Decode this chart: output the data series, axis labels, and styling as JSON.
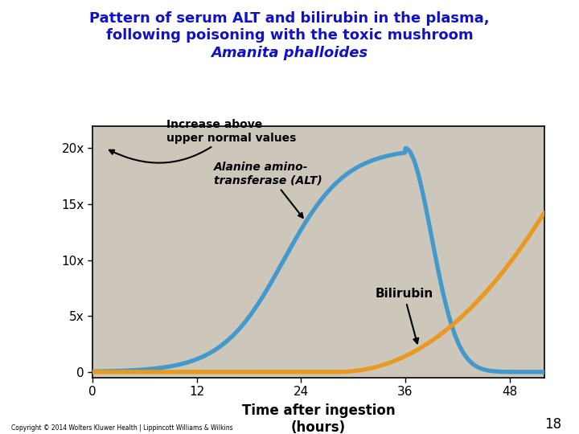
{
  "title_line1": "Pattern of serum ALT and bilirubin in the plasma,",
  "title_line2": "following poisoning with the toxic mushroom",
  "title_line3": "Amanita phalloides",
  "title_color": "#1111cc",
  "plot_bg_color": "#cdc7bb",
  "xlabel_line1": "Time after ingestion",
  "xlabel_line2": "(hours)",
  "yticks": [
    0,
    5,
    10,
    15,
    20
  ],
  "ytick_labels": [
    "0",
    "5x",
    "10x",
    "15x",
    "20x"
  ],
  "xticks": [
    0,
    12,
    24,
    36,
    48
  ],
  "xlim": [
    0,
    52
  ],
  "ylim": [
    -0.5,
    22
  ],
  "alt_color": "#4499cc",
  "bilirubin_color": "#e89a20",
  "copyright_text": "Copyright © 2014 Wolters Kluwer Health | Lippincott Williams & Wilkins",
  "page_number": "18"
}
